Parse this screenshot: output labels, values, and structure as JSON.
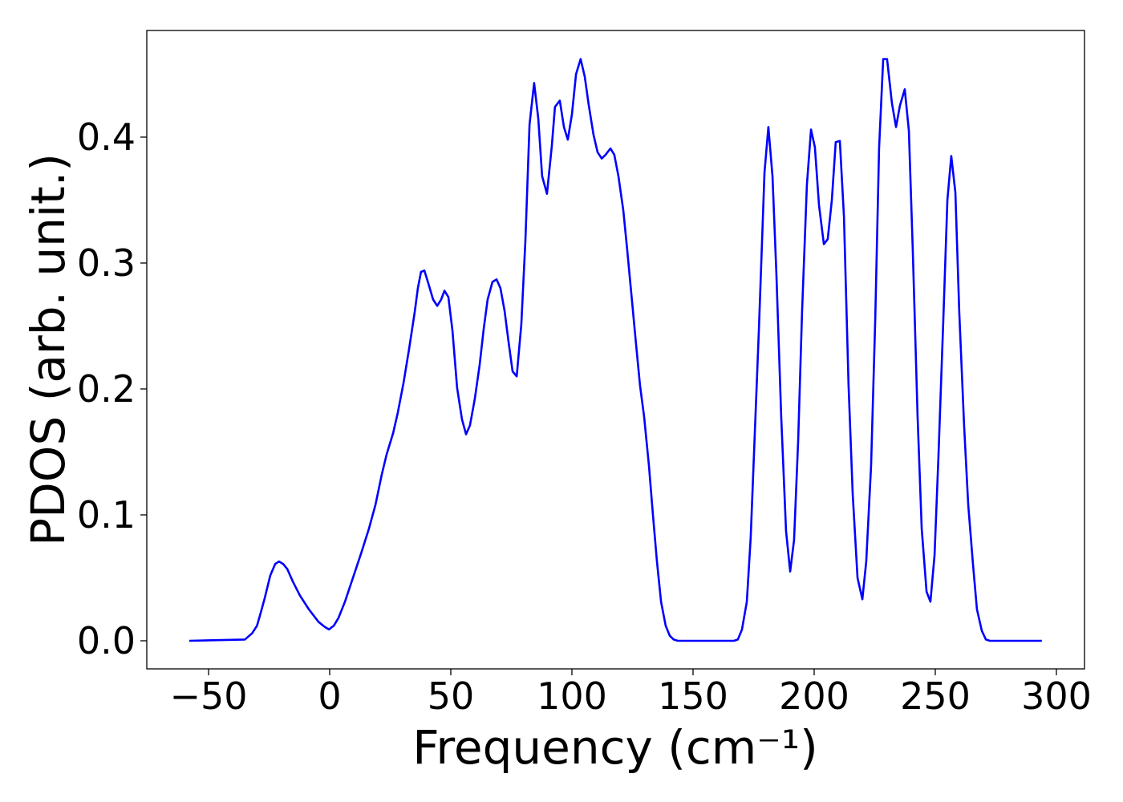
{
  "chart_data": {
    "type": "line",
    "x_label": "Frequency (cm⁻¹)",
    "y_label": "PDOS (arb. unit.)",
    "xlim": [
      -75.5,
      311.6
    ],
    "ylim": [
      -0.0223,
      0.4847
    ],
    "xticks": [
      {
        "value": -50,
        "label": "−50"
      },
      0,
      50,
      100,
      150,
      200,
      250,
      300
    ],
    "yticks": [
      {
        "value": 0,
        "label": "0.0"
      },
      0.1,
      0.2,
      0.3,
      0.4
    ],
    "grid": false,
    "series": [
      {
        "color": "#0000ff",
        "x": [
          -58,
          -35,
          -32,
          -30,
          -28.5,
          -26.8,
          -24.5,
          -22.5,
          -20.9,
          -19.2,
          -17.5,
          -15.2,
          -12.3,
          -8.6,
          -4.6,
          -2,
          -0.3,
          1.7,
          3.6,
          6.3,
          9.6,
          12.9,
          16.2,
          18.9,
          21.5,
          23.5,
          26.2,
          28.1,
          30.5,
          32.8,
          35.1,
          36.4,
          37.7,
          39.1,
          40.7,
          42.7,
          44.4,
          46,
          47.4,
          49,
          50.7,
          52.6,
          54.6,
          56.3,
          57.9,
          59.9,
          61.9,
          63.6,
          65.2,
          67.2,
          68.9,
          70.5,
          72.2,
          73.8,
          75.5,
          77.2,
          79.1,
          80.8,
          82.5,
          84.4,
          86.1,
          87.7,
          89.7,
          91.7,
          93,
          95,
          96.7,
          98.3,
          100,
          101.7,
          103.6,
          105.3,
          106.9,
          108.9,
          110.6,
          112.3,
          113.9,
          115.9,
          117.5,
          119.2,
          121.2,
          122.8,
          124.8,
          126.5,
          128.1,
          129.8,
          131.8,
          133.4,
          135.1,
          136.8,
          138.7,
          140.4,
          142,
          143.7,
          166.9,
          168.5,
          170.2,
          172.2,
          173.8,
          175.5,
          177.2,
          179.5,
          181.1,
          182.8,
          184.4,
          186.4,
          188.4,
          190.1,
          191.7,
          193.4,
          195,
          197,
          198.7,
          200.3,
          202,
          204,
          205.6,
          207.3,
          208.9,
          210.6,
          212.3,
          214.2,
          215.9,
          217.9,
          219.9,
          221.5,
          223.5,
          225.2,
          226.8,
          228.5,
          230.1,
          232.1,
          233.8,
          235.4,
          237.4,
          239.1,
          240.7,
          242.7,
          244.4,
          246.4,
          248,
          249.7,
          251.3,
          253.3,
          255,
          256.6,
          258.3,
          259.9,
          261.9,
          263.6,
          265.6,
          267.2,
          269.2,
          270.9,
          272.5,
          294
        ],
        "values": [
          0,
          0.001,
          0.006,
          0.012,
          0.022,
          0.034,
          0.052,
          0.061,
          0.063,
          0.061,
          0.057,
          0.047,
          0.036,
          0.025,
          0.015,
          0.011,
          0.009,
          0.012,
          0.018,
          0.031,
          0.05,
          0.069,
          0.089,
          0.108,
          0.132,
          0.148,
          0.165,
          0.181,
          0.205,
          0.232,
          0.261,
          0.28,
          0.293,
          0.294,
          0.284,
          0.271,
          0.266,
          0.271,
          0.278,
          0.273,
          0.246,
          0.201,
          0.176,
          0.164,
          0.171,
          0.192,
          0.219,
          0.248,
          0.271,
          0.285,
          0.287,
          0.28,
          0.262,
          0.238,
          0.214,
          0.21,
          0.251,
          0.318,
          0.41,
          0.443,
          0.415,
          0.369,
          0.355,
          0.393,
          0.424,
          0.429,
          0.408,
          0.398,
          0.418,
          0.45,
          0.462,
          0.448,
          0.426,
          0.402,
          0.388,
          0.383,
          0.386,
          0.391,
          0.386,
          0.369,
          0.342,
          0.311,
          0.27,
          0.235,
          0.203,
          0.178,
          0.139,
          0.101,
          0.063,
          0.031,
          0.012,
          0.004,
          0.001,
          0,
          0,
          0.001,
          0.009,
          0.031,
          0.082,
          0.165,
          0.248,
          0.372,
          0.408,
          0.369,
          0.292,
          0.178,
          0.087,
          0.055,
          0.08,
          0.159,
          0.261,
          0.362,
          0.406,
          0.392,
          0.346,
          0.315,
          0.319,
          0.35,
          0.396,
          0.397,
          0.337,
          0.203,
          0.117,
          0.05,
          0.033,
          0.063,
          0.139,
          0.254,
          0.391,
          0.462,
          0.462,
          0.427,
          0.408,
          0.425,
          0.438,
          0.405,
          0.311,
          0.178,
          0.089,
          0.039,
          0.031,
          0.068,
          0.146,
          0.254,
          0.35,
          0.385,
          0.356,
          0.261,
          0.171,
          0.108,
          0.06,
          0.025,
          0.008,
          0.001,
          0,
          0
        ]
      }
    ]
  }
}
